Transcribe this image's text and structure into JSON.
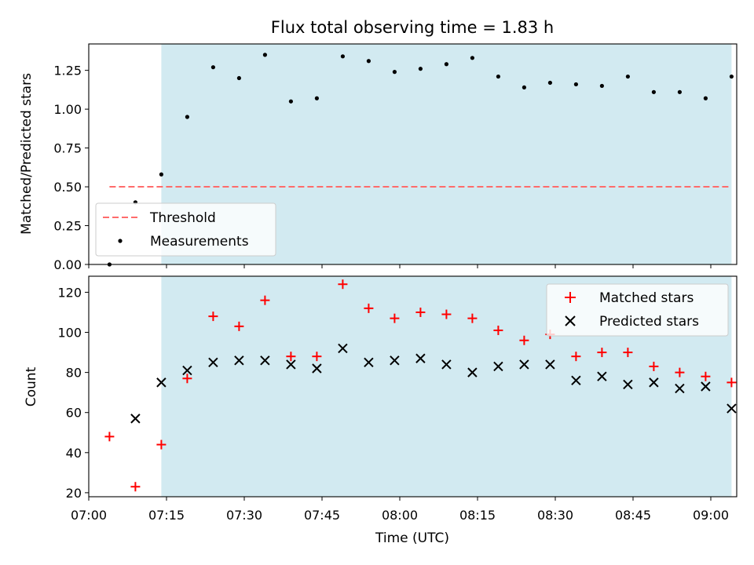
{
  "chart_data": [
    {
      "type": "scatter",
      "title": "Flux total observing time = 1.83 h",
      "ylabel": "Matched/Predicted stars",
      "xlim": [
        "07:00",
        "09:05"
      ],
      "ylim": [
        0.0,
        1.42
      ],
      "yticks": [
        0.0,
        0.25,
        0.5,
        0.75,
        1.0,
        1.25
      ],
      "ytick_labels": [
        "0.00",
        "0.25",
        "0.50",
        "0.75",
        "1.00",
        "1.25"
      ],
      "shaded_interval": [
        "07:14",
        "09:04"
      ],
      "shade_color": "#add8e6",
      "legend_position": "lower-left",
      "series": [
        {
          "name": "Threshold",
          "kind": "dashed-line",
          "color": "#ff6b6b",
          "x": [
            "07:04",
            "09:04"
          ],
          "y": [
            0.5,
            0.5
          ]
        },
        {
          "name": "Measurements",
          "kind": "dot",
          "color": "#000000",
          "x": [
            "07:04",
            "07:09",
            "07:14",
            "07:19",
            "07:24",
            "07:29",
            "07:34",
            "07:39",
            "07:44",
            "07:49",
            "07:54",
            "07:59",
            "08:04",
            "08:09",
            "08:14",
            "08:19",
            "08:24",
            "08:29",
            "08:34",
            "08:39",
            "08:44",
            "08:49",
            "08:54",
            "08:59",
            "09:04"
          ],
          "y": [
            0.0,
            0.4,
            0.58,
            0.95,
            1.27,
            1.2,
            1.35,
            1.05,
            1.07,
            1.34,
            1.31,
            1.24,
            1.26,
            1.29,
            1.33,
            1.21,
            1.14,
            1.17,
            1.16,
            1.15,
            1.21,
            1.11,
            1.11,
            1.07,
            1.21
          ]
        }
      ]
    },
    {
      "type": "scatter",
      "xlabel": "Time (UTC)",
      "ylabel": "Count",
      "xlim": [
        "07:00",
        "09:05"
      ],
      "ylim": [
        18,
        128
      ],
      "yticks": [
        20,
        40,
        60,
        80,
        100,
        120
      ],
      "ytick_labels": [
        "20",
        "40",
        "60",
        "80",
        "100",
        "120"
      ],
      "xticks": [
        "07:00",
        "07:15",
        "07:30",
        "07:45",
        "08:00",
        "08:15",
        "08:30",
        "08:45",
        "09:00"
      ],
      "shaded_interval": [
        "07:14",
        "09:04"
      ],
      "shade_color": "#add8e6",
      "legend_position": "upper-right",
      "series": [
        {
          "name": "Matched stars",
          "kind": "plus",
          "color": "#ff0000",
          "x": [
            "07:04",
            "07:09",
            "07:14",
            "07:19",
            "07:24",
            "07:29",
            "07:34",
            "07:39",
            "07:44",
            "07:49",
            "07:54",
            "07:59",
            "08:04",
            "08:09",
            "08:14",
            "08:19",
            "08:24",
            "08:29",
            "08:34",
            "08:39",
            "08:44",
            "08:49",
            "08:54",
            "08:59",
            "09:04"
          ],
          "y": [
            48,
            23,
            44,
            77,
            108,
            103,
            116,
            88,
            88,
            124,
            112,
            107,
            110,
            109,
            107,
            101,
            96,
            99,
            88,
            90,
            90,
            83,
            80,
            78,
            75
          ]
        },
        {
          "name": "Predicted stars",
          "kind": "x",
          "color": "#000000",
          "x": [
            "07:09",
            "07:14",
            "07:19",
            "07:24",
            "07:29",
            "07:34",
            "07:39",
            "07:44",
            "07:49",
            "07:54",
            "07:59",
            "08:04",
            "08:09",
            "08:14",
            "08:19",
            "08:24",
            "08:29",
            "08:34",
            "08:39",
            "08:44",
            "08:49",
            "08:54",
            "08:59",
            "09:04"
          ],
          "y": [
            57,
            75,
            81,
            85,
            86,
            86,
            84,
            82,
            92,
            85,
            86,
            87,
            84,
            80,
            83,
            84,
            84,
            76,
            78,
            74,
            75,
            72,
            73,
            62
          ]
        }
      ]
    }
  ]
}
